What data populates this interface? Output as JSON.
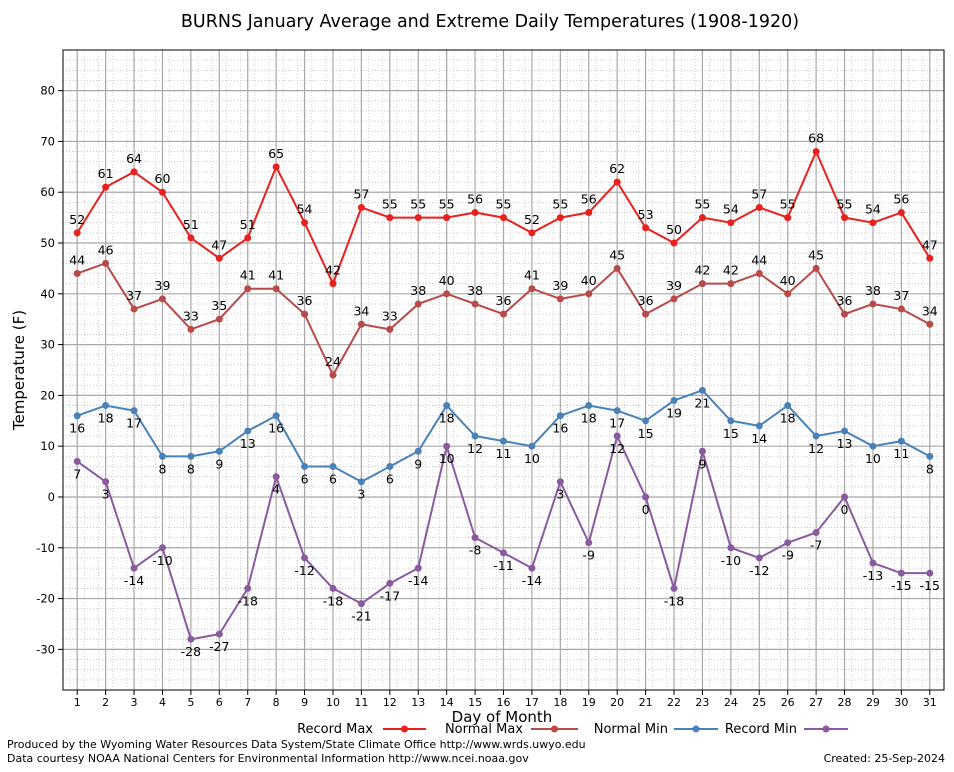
{
  "chart_data": {
    "type": "line",
    "title": "BURNS January Average and Extreme Daily Temperatures (1908-1920)",
    "xlabel": "Day of Month",
    "ylabel": "Temperature (F)",
    "x": [
      1,
      2,
      3,
      4,
      5,
      6,
      7,
      8,
      9,
      10,
      11,
      12,
      13,
      14,
      15,
      16,
      17,
      18,
      19,
      20,
      21,
      22,
      23,
      24,
      25,
      26,
      27,
      28,
      29,
      30,
      31
    ],
    "x_tick_labels": [
      "1",
      "2",
      "3",
      "4",
      "5",
      "6",
      "7",
      "8",
      "9",
      "10",
      "11",
      "12",
      "13",
      "14",
      "15",
      "16",
      "17",
      "18",
      "19",
      "20",
      "21",
      "22",
      "23",
      "24",
      "25",
      "26",
      "27",
      "28",
      "29",
      "30",
      "31"
    ],
    "ylim": [
      -38,
      88
    ],
    "y_ticks": [
      -30,
      -20,
      -10,
      0,
      10,
      20,
      30,
      40,
      50,
      60,
      70,
      80
    ],
    "y_tick_labels": [
      "-30",
      "-20",
      "-10",
      "0",
      "10",
      "20",
      "30",
      "40",
      "50",
      "60",
      "70",
      "80"
    ],
    "grid": true,
    "legend_position": "bottom",
    "series": [
      {
        "name": "Record Max",
        "color": "#e8201e",
        "label_position": "above",
        "values": [
          52,
          61,
          64,
          60,
          51,
          47,
          51,
          65,
          54,
          42,
          57,
          55,
          55,
          55,
          56,
          55,
          52,
          55,
          56,
          62,
          53,
          50,
          55,
          54,
          57,
          55,
          68,
          55,
          54,
          56,
          47
        ]
      },
      {
        "name": "Normal Max",
        "color": "#b84a4a",
        "label_position": "above",
        "values": [
          44,
          46,
          37,
          39,
          33,
          35,
          41,
          41,
          36,
          24,
          34,
          33,
          38,
          40,
          38,
          36,
          41,
          39,
          40,
          45,
          36,
          39,
          42,
          42,
          44,
          40,
          45,
          36,
          38,
          37,
          34
        ]
      },
      {
        "name": "Normal Min",
        "color": "#4a82b8",
        "label_position": "below",
        "values": [
          16,
          18,
          17,
          8,
          8,
          9,
          13,
          16,
          6,
          6,
          3,
          6,
          9,
          18,
          12,
          11,
          10,
          16,
          18,
          17,
          15,
          19,
          21,
          15,
          14,
          18,
          12,
          13,
          10,
          11,
          8
        ]
      },
      {
        "name": "Record Min",
        "color": "#8a5aa0",
        "label_position": "below",
        "values": [
          7,
          3,
          -14,
          -10,
          -28,
          -27,
          -18,
          4,
          -12,
          -18,
          -21,
          -17,
          -14,
          10,
          -8,
          -11,
          -14,
          3,
          -9,
          12,
          0,
          -18,
          9,
          -10,
          -12,
          -9,
          -7,
          0,
          -13,
          -15,
          -15
        ]
      }
    ]
  },
  "footer": {
    "produced_by": "Produced by the Wyoming Water Resources Data System/State Climate Office http://www.wrds.uwyo.edu",
    "data_courtesy": "Data courtesy NOAA National Centers for Environmental Information http://www.ncei.noaa.gov",
    "created": "Created: 25-Sep-2024"
  }
}
